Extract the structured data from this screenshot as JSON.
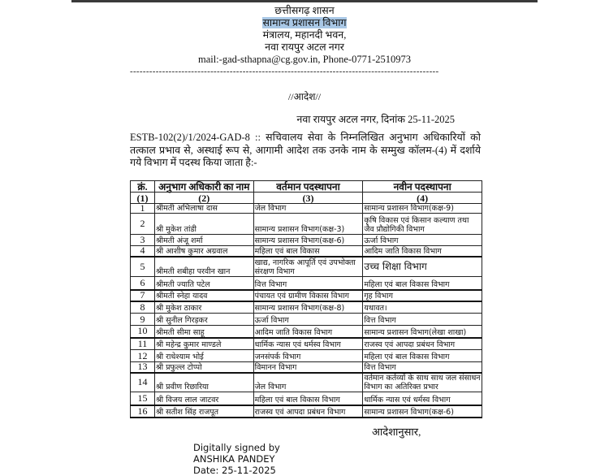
{
  "header": {
    "line1": "छत्तीसगढ़ शासन",
    "line2": "सामान्य प्रशासन विभाग",
    "line3": "मंत्रालय, महानदी भवन,",
    "line4": "नवा रायपुर अटल नगर",
    "contact": "mail:-gad-sthapna@cg.gov.in, Phone-0771-2510973",
    "separator": "------------------------------------------------------------------------------------------------"
  },
  "order_title": "//आदेश//",
  "place_date": "नवा रायपुर अटल नगर, दिनांक 25-11-2025",
  "body": "ESTB-102(2)/1/2024-GAD-8 :: सचिवालय सेवा के निम्नलिखित अनुभाग अधिकारियों को तत्काल प्रभाव से, अस्थाई रूप से, आगामी आदेश तक उनके नाम के सम्मुख कॉलम-(4) में दर्शाये गये विभाग में पदस्थ किया जाता है:-",
  "table": {
    "headers": [
      "क्रं.",
      "अनुभाग अधिकारी का नाम",
      "वर्तमान पदस्थापना",
      "नवीन पदस्थापना"
    ],
    "col_numbers": [
      "(1)",
      "(2)",
      "(3)",
      "(4)"
    ],
    "rows": [
      {
        "no": "1",
        "name": "श्रीमती अभिलाषा दास",
        "current": "जेल विभाग",
        "new": "सामान्य प्रशासन विभाग(कक्ष-9)"
      },
      {
        "no": "2",
        "name": "श्री मुकेश तांडी",
        "current": "सामान्य प्रशासन विभाग(कक्ष-3)",
        "new": "कृषि विकास एवं किसान कल्याण तथा जैव प्रौद्योगिकी विभाग"
      },
      {
        "no": "3",
        "name": "श्रीमती अंजू शर्मा",
        "current": "सामान्य प्रशासन विभाग(कक्ष-6)",
        "new": "ऊर्जा विभाग"
      },
      {
        "no": "4",
        "name": "श्री आशीष कुमार अग्रवाल",
        "current": "महिला एवं बाल विकास",
        "new": "आदिम जाति विकास विभाग"
      },
      {
        "no": "5",
        "name": "श्रीमती शबीहा परवीन खान",
        "current": "खाद्य, नागरिक आपूर्ति एवं उपभोक्ता संरक्षण विभाग",
        "new": "उच्च शिक्षा विभाग"
      },
      {
        "no": "6",
        "name": "श्रीमती ज्याति पटेल",
        "current": "वित्त विभाग",
        "new": "महिला एवं बाल विकास विभाग"
      },
      {
        "no": "7",
        "name": "श्रीमती स्नेहा यादव",
        "current": "पंचायत एवं ग्रामीण विकास विभाग",
        "new": "गृह विभाग"
      },
      {
        "no": "8",
        "name": "श्री मुकेश ठाकार",
        "current": "सामान्य प्रशासन विभाग(कक्ष-8)",
        "new": "यथावत।"
      },
      {
        "no": "9",
        "name": "श्री सुनील गिरड़कर",
        "current": "ऊर्जा विभाग",
        "new": "वित्त विभाग"
      },
      {
        "no": "10",
        "name": "श्रीमती सीमा साहू",
        "current": "आदिम जाति विकास विभाग",
        "new": "सामान्य प्रशासन विभाग(लेखा शाखा)"
      },
      {
        "no": "11",
        "name": "श्री महेन्द्र कुमार माण्डले",
        "current": "धार्मिक न्यास एवं धर्मस्व विभाग",
        "new": "राजस्व एवं आपदा प्रबंधन विभाग"
      },
      {
        "no": "12",
        "name": "श्री राधेश्याम भोई",
        "current": "जनसंपर्क विभाग",
        "new": "महिला एवं बाल विकास विभाग"
      },
      {
        "no": "13",
        "name": "श्री प्रफुल्ल टोप्पो",
        "current": "विमानन विभाग",
        "new": "वित्त विभाग"
      },
      {
        "no": "14",
        "name": "श्री प्रवीण रिछारिया",
        "current": "जेल विभाग",
        "new": "वर्तमान कर्तव्यों के साथ साथ जल संसाधन विभाग का अतिरिक्त प्रभार"
      },
      {
        "no": "15",
        "name": "श्री विजय लाल जाटवर",
        "current": "महिला एवं बाल विकास विभाग",
        "new": "धार्मिक न्यास एवं धर्मस्व विभाग"
      },
      {
        "no": "16",
        "name": "श्री सतीश सिंह राजपूत",
        "current": "राजस्व एवं आपदा प्रबंधन विभाग",
        "new": "सामान्य प्रशासन विभाग(कक्ष-6)"
      }
    ]
  },
  "signoff": "आदेशानुसार,",
  "signature": {
    "line1": "Digitally signed by",
    "line2": "ANSHIKA PANDEY",
    "line3": "Date: 25-11-2025"
  }
}
